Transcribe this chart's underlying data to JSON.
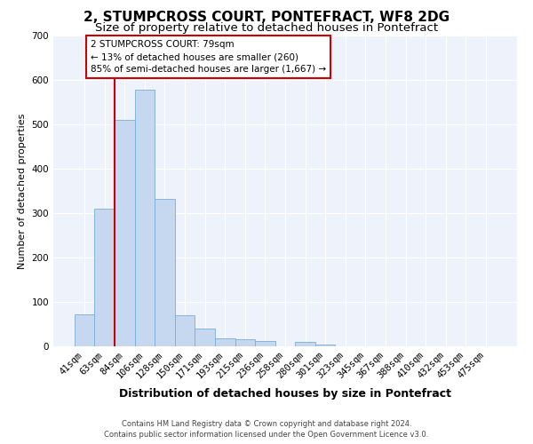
{
  "title": "2, STUMPCROSS COURT, PONTEFRACT, WF8 2DG",
  "subtitle": "Size of property relative to detached houses in Pontefract",
  "xlabel": "Distribution of detached houses by size in Pontefract",
  "ylabel": "Number of detached properties",
  "bar_labels": [
    "41sqm",
    "63sqm",
    "84sqm",
    "106sqm",
    "128sqm",
    "150sqm",
    "171sqm",
    "193sqm",
    "215sqm",
    "236sqm",
    "258sqm",
    "280sqm",
    "301sqm",
    "323sqm",
    "345sqm",
    "367sqm",
    "388sqm",
    "410sqm",
    "432sqm",
    "453sqm",
    "475sqm"
  ],
  "bar_values": [
    72,
    310,
    510,
    578,
    333,
    70,
    40,
    18,
    17,
    12,
    0,
    10,
    5,
    0,
    0,
    0,
    0,
    0,
    0,
    0,
    0
  ],
  "bar_color": "#c5d8f0",
  "bar_edge_color": "#7aadd6",
  "vline_color": "#cc0000",
  "ylim": [
    0,
    700
  ],
  "yticks": [
    0,
    100,
    200,
    300,
    400,
    500,
    600,
    700
  ],
  "annotation_title": "2 STUMPCROSS COURT: 79sqm",
  "annotation_line1": "← 13% of detached houses are smaller (260)",
  "annotation_line2": "85% of semi-detached houses are larger (1,667) →",
  "annotation_box_color": "#ffffff",
  "annotation_box_edge": "#cc0000",
  "footer1": "Contains HM Land Registry data © Crown copyright and database right 2024.",
  "footer2": "Contains public sector information licensed under the Open Government Licence v3.0.",
  "background_color": "#ffffff",
  "plot_bg_color": "#eef2fa",
  "grid_color": "#ffffff",
  "title_fontsize": 11,
  "subtitle_fontsize": 9.5,
  "xlabel_fontsize": 9,
  "ylabel_fontsize": 8,
  "tick_fontsize": 7.5,
  "annotation_fontsize": 7.5,
  "footer_fontsize": 6
}
